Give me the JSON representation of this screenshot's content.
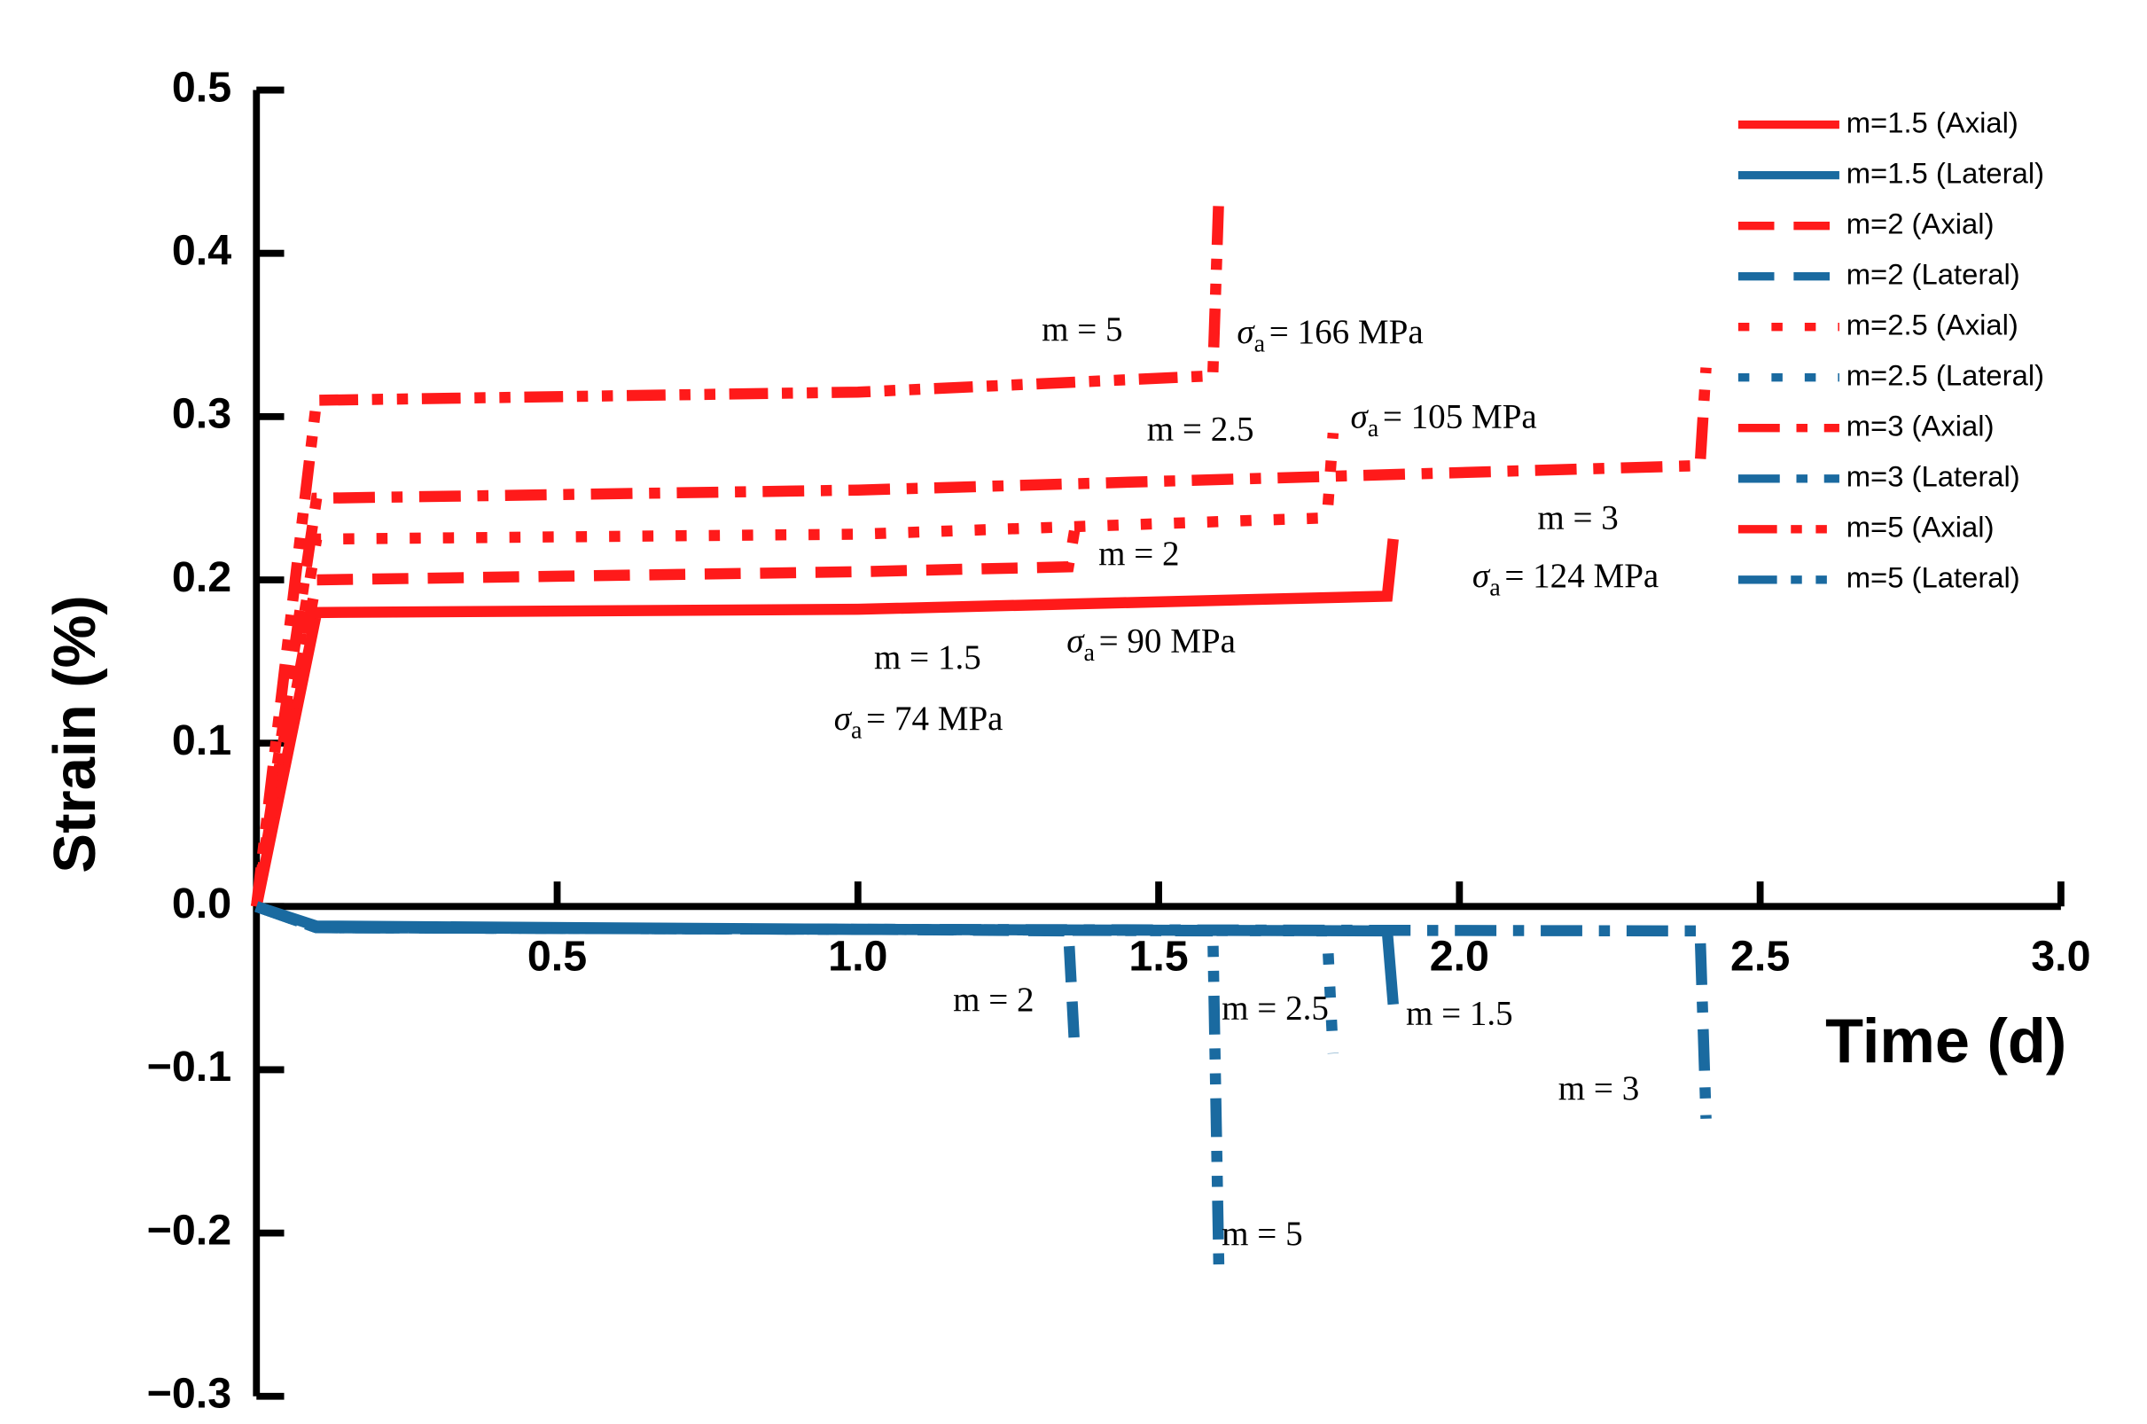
{
  "chart_data": {
    "type": "line",
    "xlabel": "Time (d)",
    "ylabel": "Strain (%)",
    "xlim": [
      0,
      3
    ],
    "ylim": [
      -0.3,
      0.5
    ],
    "xticks": [
      0.5,
      {
        "value": 1,
        "label": "1.0"
      },
      1.5,
      {
        "value": 2,
        "label": "2.0"
      },
      2.5,
      {
        "value": 3,
        "label": "3.0"
      }
    ],
    "yticks": [
      {
        "value": -0.3,
        "label": "−0.3"
      },
      {
        "value": -0.2,
        "label": "−0.2"
      },
      {
        "value": -0.1,
        "label": "−0.1"
      },
      {
        "value": 0,
        "label": "0.0"
      },
      0.1,
      0.2,
      0.3,
      0.4,
      0.5
    ],
    "legend": "upper right",
    "series": [
      {
        "name": "m=1.5 (Axial)",
        "color": "#ff1a1a",
        "dash": "solid",
        "x": [
          0,
          0.1,
          1.0,
          1.88,
          1.89
        ],
        "values": [
          0,
          0.18,
          0.182,
          0.19,
          0.225
        ]
      },
      {
        "name": "m=1.5 (Lateral)",
        "color": "#1a6aa0",
        "dash": "solid",
        "x": [
          0,
          0.1,
          1.0,
          1.88,
          1.89
        ],
        "values": [
          0,
          -0.012,
          -0.014,
          -0.015,
          -0.06
        ]
      },
      {
        "name": "m=2 (Axial)",
        "color": "#ff1a1a",
        "dash": "dash",
        "x": [
          0,
          0.1,
          1.0,
          1.35,
          1.36
        ],
        "values": [
          0,
          0.2,
          0.205,
          0.208,
          0.23
        ]
      },
      {
        "name": "m=2 (Lateral)",
        "color": "#1a6aa0",
        "dash": "dash",
        "x": [
          0,
          0.1,
          1.0,
          1.35,
          1.36
        ],
        "values": [
          0,
          -0.013,
          -0.014,
          -0.015,
          -0.085
        ]
      },
      {
        "name": "m=2.5 (Axial)",
        "color": "#ff1a1a",
        "dash": "dot",
        "x": [
          0,
          0.1,
          1.0,
          1.78,
          1.79
        ],
        "values": [
          0,
          0.225,
          0.228,
          0.238,
          0.29
        ]
      },
      {
        "name": "m=2.5 (Lateral)",
        "color": "#1a6aa0",
        "dash": "dot",
        "x": [
          0,
          0.1,
          1.0,
          1.78,
          1.79
        ],
        "values": [
          0,
          -0.013,
          -0.014,
          -0.015,
          -0.09
        ]
      },
      {
        "name": "m=3 (Axial)",
        "color": "#ff1a1a",
        "dash": "dashdot",
        "x": [
          0,
          0.1,
          1.0,
          2.4,
          2.41
        ],
        "values": [
          0,
          0.25,
          0.255,
          0.27,
          0.33
        ]
      },
      {
        "name": "m=3 (Lateral)",
        "color": "#1a6aa0",
        "dash": "dashdot",
        "x": [
          0,
          0.1,
          1.0,
          2.4,
          2.41
        ],
        "values": [
          0,
          -0.013,
          -0.014,
          -0.015,
          -0.13
        ]
      },
      {
        "name": "m=5 (Axial)",
        "color": "#ff1a1a",
        "dash": "dashdotdot",
        "x": [
          0,
          0.1,
          1.0,
          1.59,
          1.6
        ],
        "values": [
          0,
          0.31,
          0.315,
          0.325,
          0.435
        ]
      },
      {
        "name": "m=5 (Lateral)",
        "color": "#1a6aa0",
        "dash": "dashdotdot",
        "x": [
          0,
          0.1,
          1.0,
          1.59,
          1.6
        ],
        "values": [
          0,
          -0.013,
          -0.014,
          -0.015,
          -0.22
        ]
      }
    ],
    "sigma_symbol": "σ",
    "sigma_subscript": "a",
    "annotations": [
      {
        "m": "m = 5",
        "stress": "= 166 MPa"
      },
      {
        "m": "m = 2.5",
        "stress": "= 105 MPa"
      },
      {
        "m": "m = 2",
        "stress": "= 90 MPa"
      },
      {
        "m": "m = 3",
        "stress": "= 124 MPa"
      },
      {
        "m": "m = 1.5",
        "stress": "= 74 MPa"
      }
    ],
    "lateral_annotations": [
      "m = 2",
      "m = 2.5",
      "m = 1.5",
      "m = 3",
      "m = 5"
    ]
  }
}
